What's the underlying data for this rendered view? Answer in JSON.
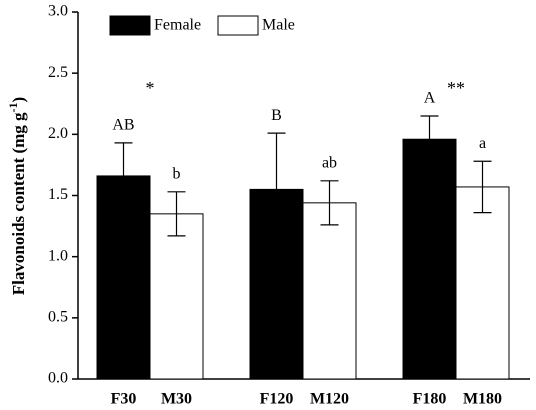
{
  "chart_data": {
    "type": "bar",
    "ylabel": "Flavonoids content (mg g",
    "ylabel_sup": "-1",
    "ylabel_end": ")",
    "ylim": [
      0,
      3
    ],
    "yticks": [
      {
        "value": 0,
        "label": "0.0"
      },
      0.5,
      {
        "value": 1,
        "label": "1.0"
      },
      1.5,
      {
        "value": 2,
        "label": "2.0"
      },
      2.5,
      {
        "value": 3,
        "label": "3.0"
      }
    ],
    "series": [
      {
        "name": "Female",
        "color": "#000000",
        "categories": [
          "F30",
          "F120",
          "F180"
        ],
        "values": [
          1.66,
          1.55,
          1.96
        ],
        "errors": [
          0.27,
          0.46,
          0.19
        ],
        "letters": [
          "AB",
          "B",
          "A"
        ]
      },
      {
        "name": "Male",
        "color": "#ffffff",
        "categories": [
          "M30",
          "M120",
          "M180"
        ],
        "values": [
          1.35,
          1.44,
          1.57
        ],
        "errors": [
          0.18,
          0.18,
          0.21
        ],
        "letters": [
          "b",
          "ab",
          "a"
        ]
      }
    ],
    "significance": [
      "*",
      null,
      "**"
    ]
  }
}
